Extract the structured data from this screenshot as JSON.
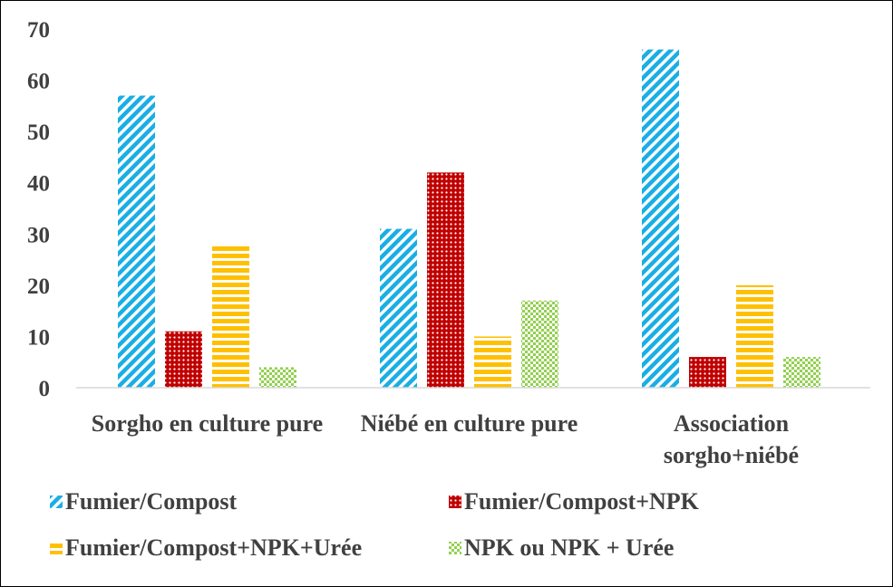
{
  "chart_data": {
    "type": "bar",
    "categories": [
      "Sorgho en culture pure",
      "Niébé en culture pure",
      "Association sorgho+niébé"
    ],
    "series": [
      {
        "name": "Fumier/Compost",
        "color": "#1aaee5",
        "pattern": "diagonal",
        "values": [
          57,
          31,
          66
        ]
      },
      {
        "name": "Fumier/Compost+NPK",
        "color": "#c00000",
        "pattern": "dots",
        "values": [
          11,
          42,
          6
        ]
      },
      {
        "name": "Fumier/Compost+NPK+Urée",
        "color": "#ffc000",
        "pattern": "horizontal",
        "values": [
          28,
          10,
          20
        ]
      },
      {
        "name": "NPK ou NPK + Urée",
        "color": "#92d050",
        "pattern": "checker",
        "values": [
          4,
          17,
          6
        ]
      }
    ],
    "ylim": [
      0,
      70
    ],
    "yticks": [
      0,
      10,
      20,
      30,
      40,
      50,
      60,
      70
    ],
    "grid": false,
    "legend": "bottom"
  }
}
